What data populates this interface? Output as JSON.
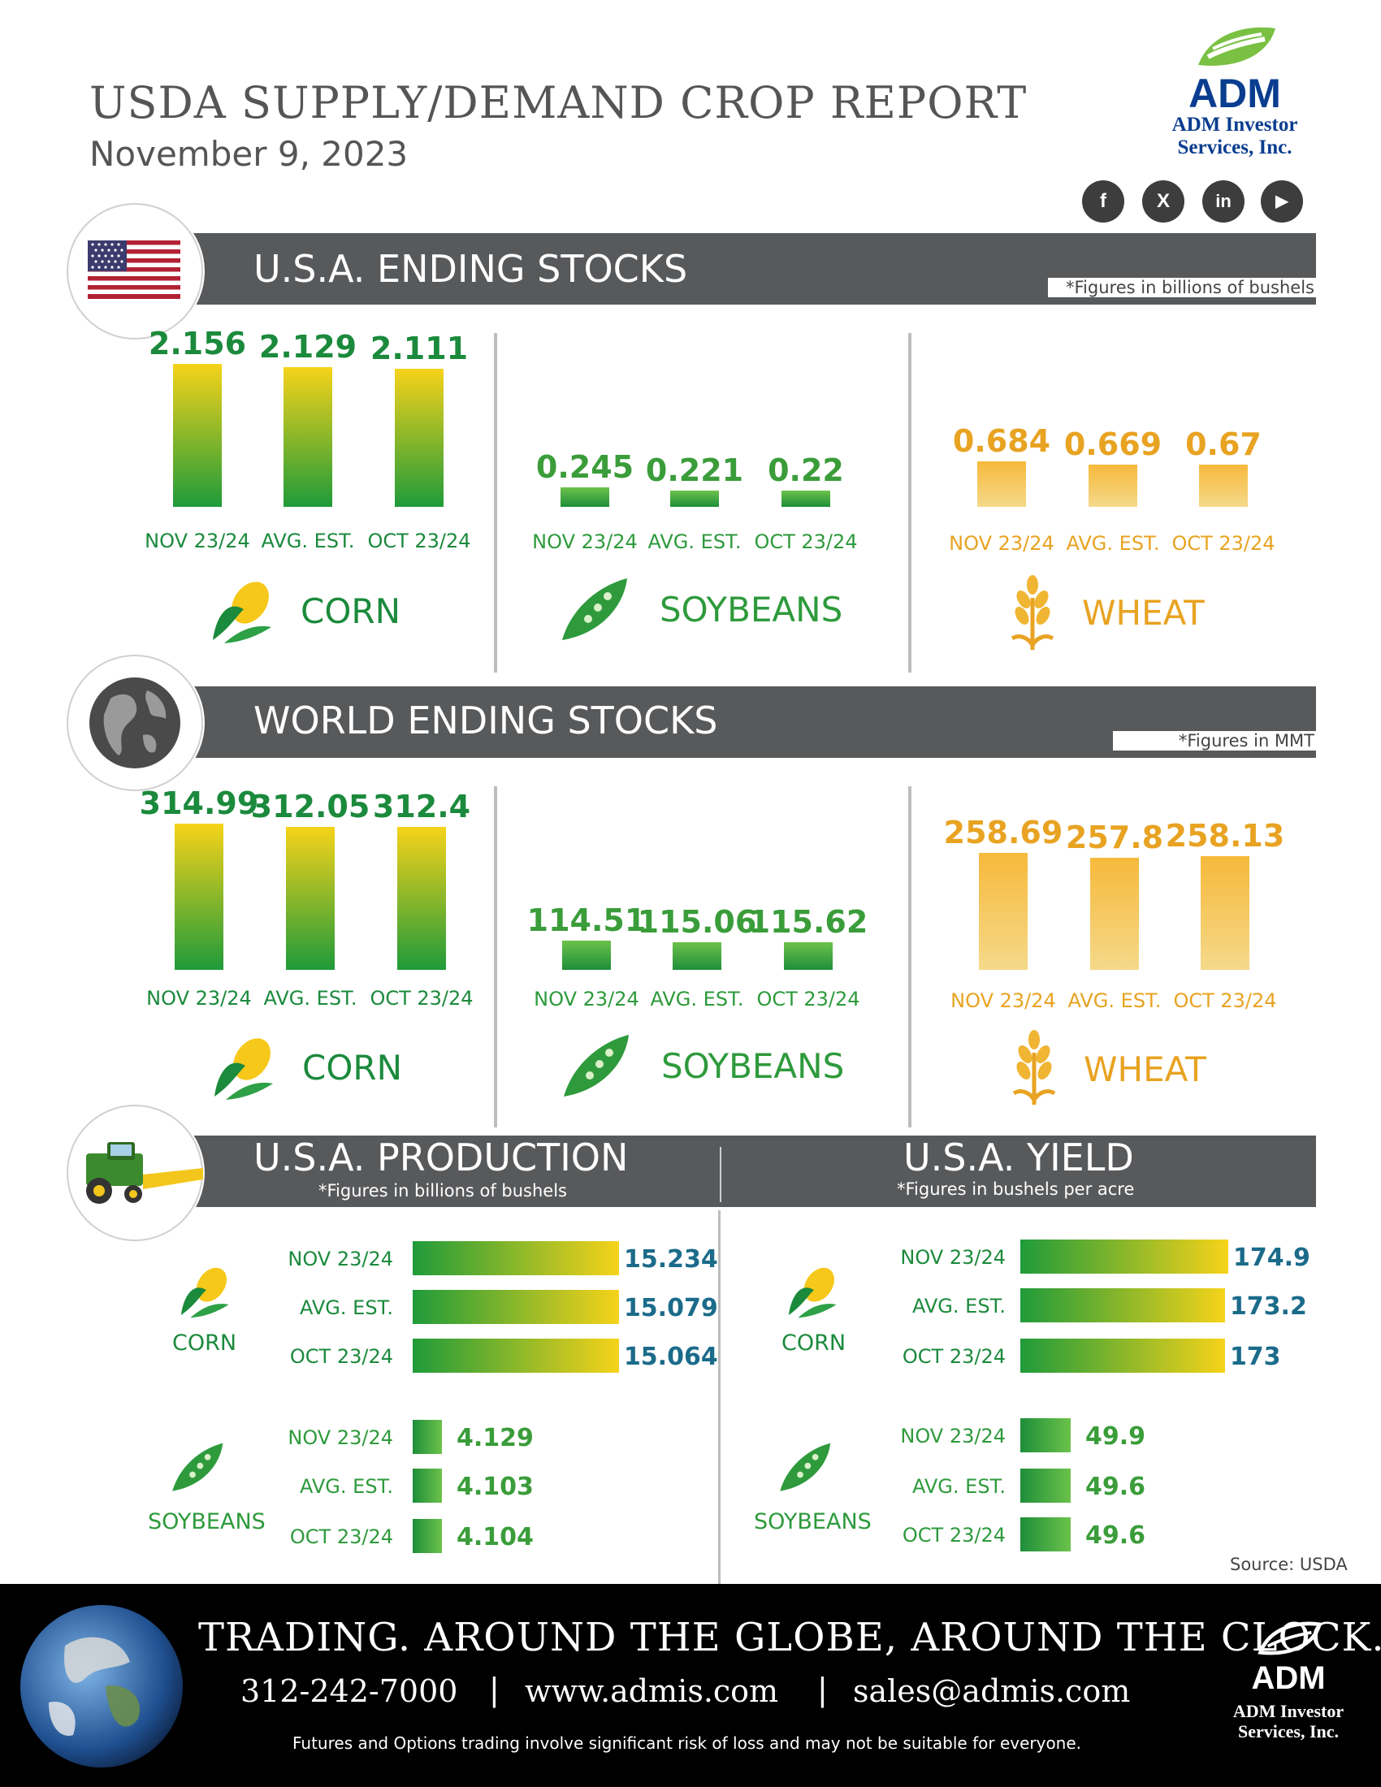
{
  "header": {
    "title": "USDA SUPPLY/DEMAND CROP REPORT",
    "date": "November 9, 2023",
    "brand": "ADM",
    "brand_sub1": "ADM Investor",
    "brand_sub2": "Services, Inc.",
    "social": [
      {
        "icon": "facebook-icon",
        "glyph": "f"
      },
      {
        "icon": "x-icon",
        "glyph": "X"
      },
      {
        "icon": "linkedin-icon",
        "glyph": "in"
      },
      {
        "icon": "youtube-icon",
        "glyph": "▶"
      }
    ]
  },
  "colors": {
    "band": "#58595b",
    "corn_green": "#1b8a3c",
    "soy_green": "#2e9a3c",
    "wheat_gold": "#e8a322",
    "corn_yellow": "#f6d31a"
  },
  "usa_ending": {
    "title": "U.S.A. ENDING STOCKS",
    "note": "*Figures in billions of bushels"
  },
  "world_ending": {
    "title": "WORLD ENDING STOCKS",
    "note": "*Figures in MMT"
  },
  "production": {
    "title": "U.S.A. PRODUCTION",
    "note": "*Figures in billions of bushels"
  },
  "yield": {
    "title": "U.S.A. YIELD",
    "note": "*Figures in bushels per acre"
  },
  "crops": {
    "corn": "CORN",
    "soybeans": "SOYBEANS",
    "wheat": "WHEAT"
  },
  "source": "Source: USDA",
  "footer": {
    "tagline": "TRADING. AROUND THE GLOBE, AROUND THE CLOCK.",
    "phone": "312-242-7000",
    "web": "www.admis.com",
    "email": "sales@admis.com",
    "sep": "|",
    "disclaimer": "Futures and Options trading involve significant risk of loss and may not be suitable for everyone.",
    "brand": "ADM",
    "brand_sub1": "ADM Investor",
    "brand_sub2": "Services, Inc."
  },
  "chart_data": [
    {
      "type": "bar",
      "section": "U.S.A. ENDING STOCKS",
      "crop": "CORN",
      "categories": [
        "NOV 23/24",
        "AVG. EST.",
        "OCT 23/24"
      ],
      "values": [
        2.156,
        2.129,
        2.111
      ],
      "labels": [
        "2.156",
        "2.129",
        "2.111"
      ]
    },
    {
      "type": "bar",
      "section": "U.S.A. ENDING STOCKS",
      "crop": "SOYBEANS",
      "categories": [
        "NOV 23/24",
        "AVG. EST.",
        "OCT 23/24"
      ],
      "values": [
        0.245,
        0.221,
        0.22
      ],
      "labels": [
        "0.245",
        "0.221",
        "0.22"
      ]
    },
    {
      "type": "bar",
      "section": "U.S.A. ENDING STOCKS",
      "crop": "WHEAT",
      "categories": [
        "NOV 23/24",
        "AVG. EST.",
        "OCT 23/24"
      ],
      "values": [
        0.684,
        0.669,
        0.67
      ],
      "labels": [
        "0.684",
        "0.669",
        "0.67"
      ]
    },
    {
      "type": "bar",
      "section": "WORLD ENDING STOCKS",
      "crop": "CORN",
      "categories": [
        "NOV 23/24",
        "AVG. EST.",
        "OCT 23/24"
      ],
      "values": [
        314.99,
        312.05,
        312.4
      ],
      "labels": [
        "314.99",
        "312.05",
        "312.4"
      ]
    },
    {
      "type": "bar",
      "section": "WORLD ENDING STOCKS",
      "crop": "SOYBEANS",
      "categories": [
        "NOV 23/24",
        "AVG. EST.",
        "OCT 23/24"
      ],
      "values": [
        114.51,
        115.06,
        115.62
      ],
      "labels": [
        "114.51",
        "115.06",
        "115.62"
      ]
    },
    {
      "type": "bar",
      "section": "WORLD ENDING STOCKS",
      "crop": "WHEAT",
      "categories": [
        "NOV 23/24",
        "AVG. EST.",
        "OCT 23/24"
      ],
      "values": [
        258.69,
        257.8,
        258.13
      ],
      "labels": [
        "258.69",
        "257.8",
        "258.13"
      ]
    },
    {
      "type": "bar",
      "orientation": "horizontal",
      "section": "U.S.A. PRODUCTION",
      "crop": "CORN",
      "categories": [
        "NOV 23/24",
        "AVG. EST.",
        "OCT 23/24"
      ],
      "values": [
        15.234,
        15.079,
        15.064
      ],
      "labels": [
        "15.234",
        "15.079",
        "15.064"
      ]
    },
    {
      "type": "bar",
      "orientation": "horizontal",
      "section": "U.S.A. PRODUCTION",
      "crop": "SOYBEANS",
      "categories": [
        "NOV 23/24",
        "AVG. EST.",
        "OCT 23/24"
      ],
      "values": [
        4.129,
        4.103,
        4.104
      ],
      "labels": [
        "4.129",
        "4.103",
        "4.104"
      ]
    },
    {
      "type": "bar",
      "orientation": "horizontal",
      "section": "U.S.A. YIELD",
      "crop": "CORN",
      "categories": [
        "NOV 23/24",
        "AVG. EST.",
        "OCT 23/24"
      ],
      "values": [
        174.9,
        173.2,
        173
      ],
      "labels": [
        "174.9",
        "173.2",
        "173"
      ]
    },
    {
      "type": "bar",
      "orientation": "horizontal",
      "section": "U.S.A. YIELD",
      "crop": "SOYBEANS",
      "categories": [
        "NOV 23/24",
        "AVG. EST.",
        "OCT 23/24"
      ],
      "values": [
        49.9,
        49.6,
        49.6
      ],
      "labels": [
        "49.9",
        "49.6",
        "49.6"
      ]
    }
  ]
}
